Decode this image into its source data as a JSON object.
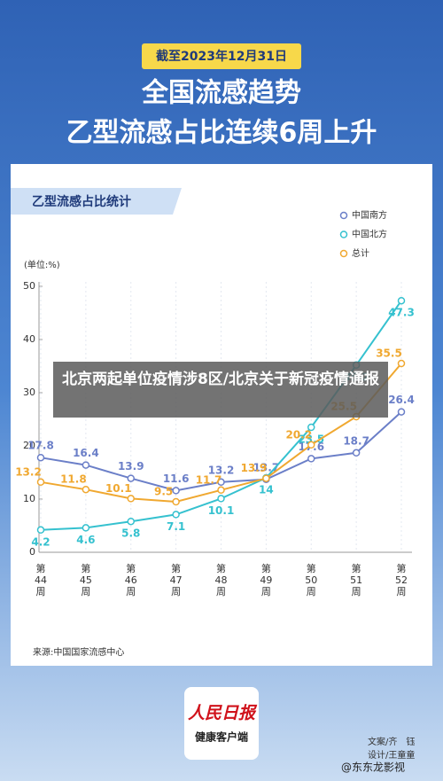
{
  "header": {
    "date": "截至2023年12月31日",
    "title": "全国流感趋势",
    "subtitle": "乙型流感占比连续6周上升"
  },
  "chart_data": {
    "type": "line",
    "title": "乙型流感占比统计",
    "y_label": "(单位:%)",
    "categories": [
      "第44周",
      "第45周",
      "第46周",
      "第47周",
      "第48周",
      "第49周",
      "第50周",
      "第51周",
      "第52周"
    ],
    "series": [
      {
        "name": "中国南方",
        "color": "#6b7fc8",
        "values": [
          17.8,
          16.4,
          13.9,
          11.6,
          13.2,
          13.7,
          17.6,
          18.7,
          26.4
        ]
      },
      {
        "name": "中国北方",
        "color": "#35c1cf",
        "values": [
          4.2,
          4.6,
          5.8,
          7.1,
          10.1,
          14,
          23.5,
          35.2,
          47.3
        ]
      },
      {
        "name": "总计",
        "color": "#f0a830",
        "values": [
          13.2,
          11.8,
          10.1,
          9.5,
          11.7,
          13.9,
          20.2,
          25.5,
          35.5
        ]
      }
    ],
    "ylim": [
      0,
      50
    ],
    "yticks": [
      0,
      10,
      20,
      30,
      40,
      50
    ],
    "legend": "top-right"
  },
  "banner": {
    "text": "北京两起单位疫情涉8区/北京关于新冠疫情通报"
  },
  "footer": {
    "source": "来源:中国国家流感中心",
    "logo_title": "人民日报",
    "logo_subtitle": "健康客户端",
    "credit_copy": "文案/齐　钰",
    "credit_design": "设计/王童童",
    "watermark": "@东东龙影视"
  }
}
